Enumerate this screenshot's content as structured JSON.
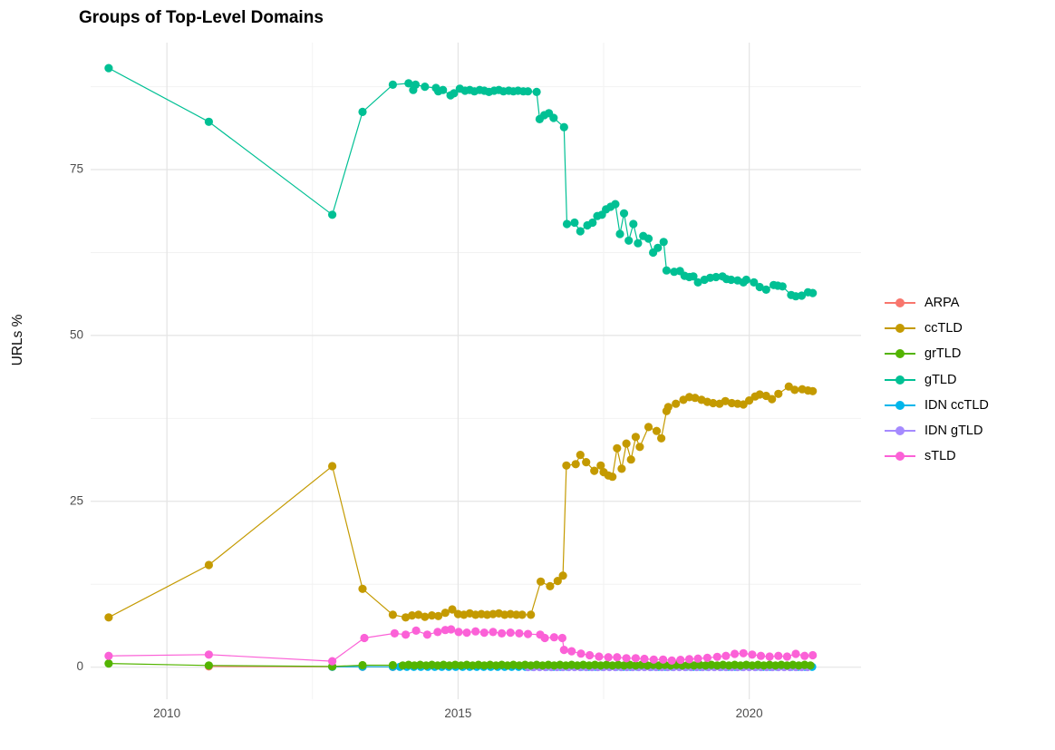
{
  "figure": {
    "background": "#FFFFFF"
  },
  "chart_data": {
    "type": "line",
    "title": "Groups of Top-Level Domains",
    "xlabel": "",
    "ylabel": "URLs %",
    "legend_position": "right",
    "grid": true,
    "xlim": [
      2008.69,
      2021.92
    ],
    "ylim": [
      -4.83,
      94.14
    ],
    "x_ticks": [
      {
        "value": 2010,
        "label": "2010"
      },
      {
        "value": 2015,
        "label": "2015"
      },
      {
        "value": 2020,
        "label": "2020"
      }
    ],
    "y_ticks": [
      {
        "value": 0,
        "label": "0"
      },
      {
        "value": 25,
        "label": "25"
      },
      {
        "value": 50,
        "label": "50"
      },
      {
        "value": 75,
        "label": "75"
      }
    ],
    "x_minor_gridlines": [
      2012.5,
      2017.5
    ],
    "y_minor_gridlines": [
      12.5,
      37.5,
      62.5,
      87.5
    ],
    "draw_order": [
      "ARPA",
      "IDN ccTLD",
      "IDN gTLD",
      "grTLD",
      "ccTLD",
      "gTLD",
      "sTLD"
    ],
    "series": [
      {
        "name": "ARPA",
        "color": "#F8766D",
        "points": [
          [
            2010.72,
            0.12
          ],
          [
            2012.84,
            0.07
          ],
          [
            2013.36,
            0.05
          ],
          [
            2013.88,
            0.04
          ]
        ]
      },
      {
        "name": "ccTLD",
        "color": "#C49A00",
        "points": [
          [
            2009.0,
            7.5
          ],
          [
            2010.72,
            15.4
          ],
          [
            2012.84,
            30.3
          ],
          [
            2013.36,
            11.8
          ],
          [
            2013.88,
            7.9
          ],
          [
            2014.1,
            7.5
          ],
          [
            2014.21,
            7.8
          ],
          [
            2014.32,
            7.9
          ],
          [
            2014.43,
            7.6
          ],
          [
            2014.55,
            7.8
          ],
          [
            2014.66,
            7.7
          ],
          [
            2014.78,
            8.2
          ],
          [
            2014.9,
            8.7
          ],
          [
            2015.0,
            8.0
          ],
          [
            2015.1,
            7.9
          ],
          [
            2015.2,
            8.1
          ],
          [
            2015.3,
            7.9
          ],
          [
            2015.4,
            8.0
          ],
          [
            2015.5,
            7.9
          ],
          [
            2015.6,
            8.0
          ],
          [
            2015.7,
            8.1
          ],
          [
            2015.8,
            7.9
          ],
          [
            2015.9,
            8.0
          ],
          [
            2016.0,
            7.9
          ],
          [
            2016.1,
            7.9
          ],
          [
            2016.25,
            7.9
          ],
          [
            2016.42,
            12.9
          ],
          [
            2016.58,
            12.2
          ],
          [
            2016.71,
            13.0
          ],
          [
            2016.8,
            13.8
          ],
          [
            2016.86,
            30.4
          ],
          [
            2017.02,
            30.6
          ],
          [
            2017.1,
            32.0
          ],
          [
            2017.2,
            30.9
          ],
          [
            2017.34,
            29.6
          ],
          [
            2017.45,
            30.4
          ],
          [
            2017.5,
            29.4
          ],
          [
            2017.58,
            28.9
          ],
          [
            2017.65,
            28.7
          ],
          [
            2017.73,
            33.0
          ],
          [
            2017.81,
            29.9
          ],
          [
            2017.89,
            33.7
          ],
          [
            2017.97,
            31.3
          ],
          [
            2018.05,
            34.7
          ],
          [
            2018.12,
            33.2
          ],
          [
            2018.27,
            36.2
          ],
          [
            2018.41,
            35.6
          ],
          [
            2018.49,
            34.5
          ],
          [
            2018.58,
            38.6
          ],
          [
            2018.61,
            39.2
          ],
          [
            2018.74,
            39.7
          ],
          [
            2018.87,
            40.3
          ],
          [
            2018.97,
            40.7
          ],
          [
            2019.07,
            40.6
          ],
          [
            2019.18,
            40.3
          ],
          [
            2019.28,
            40.0
          ],
          [
            2019.38,
            39.8
          ],
          [
            2019.49,
            39.7
          ],
          [
            2019.59,
            40.1
          ],
          [
            2019.7,
            39.8
          ],
          [
            2019.8,
            39.7
          ],
          [
            2019.9,
            39.6
          ],
          [
            2020.0,
            40.2
          ],
          [
            2020.1,
            40.8
          ],
          [
            2020.18,
            41.1
          ],
          [
            2020.29,
            40.9
          ],
          [
            2020.39,
            40.4
          ],
          [
            2020.5,
            41.2
          ],
          [
            2020.68,
            42.3
          ],
          [
            2020.78,
            41.8
          ],
          [
            2020.91,
            41.9
          ],
          [
            2021.01,
            41.7
          ],
          [
            2021.09,
            41.6
          ]
        ]
      },
      {
        "name": "grTLD",
        "color": "#53B400",
        "points": [
          [
            2009.0,
            0.55
          ],
          [
            2010.72,
            0.25
          ],
          [
            2012.84,
            0.1
          ],
          [
            2013.36,
            0.3
          ],
          [
            2013.88,
            0.3
          ]
        ],
        "extend": {
          "from": 2014.05,
          "to": 2021.09,
          "step": 0.1,
          "value": 0.3
        },
        "wiggle": 0.05
      },
      {
        "name": "gTLD",
        "color": "#00C094",
        "points": [
          [
            2009.0,
            90.3
          ],
          [
            2010.72,
            82.2
          ],
          [
            2012.84,
            68.2
          ],
          [
            2013.36,
            83.7
          ],
          [
            2013.88,
            87.8
          ],
          [
            2014.15,
            88.0
          ],
          [
            2014.23,
            87.0
          ],
          [
            2014.27,
            87.8
          ],
          [
            2014.43,
            87.5
          ],
          [
            2014.62,
            87.3
          ],
          [
            2014.66,
            86.8
          ],
          [
            2014.74,
            87.0
          ],
          [
            2014.87,
            86.2
          ],
          [
            2014.93,
            86.5
          ],
          [
            2015.03,
            87.2
          ],
          [
            2015.12,
            86.9
          ],
          [
            2015.2,
            87.0
          ],
          [
            2015.28,
            86.8
          ],
          [
            2015.37,
            87.0
          ],
          [
            2015.45,
            86.9
          ],
          [
            2015.53,
            86.7
          ],
          [
            2015.62,
            86.9
          ],
          [
            2015.7,
            87.0
          ],
          [
            2015.78,
            86.8
          ],
          [
            2015.87,
            86.9
          ],
          [
            2015.95,
            86.8
          ],
          [
            2016.03,
            86.9
          ],
          [
            2016.12,
            86.8
          ],
          [
            2016.2,
            86.8
          ],
          [
            2016.35,
            86.7
          ],
          [
            2016.4,
            82.6
          ],
          [
            2016.48,
            83.2
          ],
          [
            2016.56,
            83.5
          ],
          [
            2016.64,
            82.8
          ],
          [
            2016.82,
            81.4
          ],
          [
            2016.87,
            66.8
          ],
          [
            2017.0,
            67.0
          ],
          [
            2017.1,
            65.7
          ],
          [
            2017.22,
            66.6
          ],
          [
            2017.31,
            67.0
          ],
          [
            2017.39,
            68.0
          ],
          [
            2017.47,
            68.2
          ],
          [
            2017.54,
            69.0
          ],
          [
            2017.62,
            69.4
          ],
          [
            2017.7,
            69.8
          ],
          [
            2017.78,
            65.3
          ],
          [
            2017.85,
            68.4
          ],
          [
            2017.93,
            64.3
          ],
          [
            2018.01,
            66.8
          ],
          [
            2018.09,
            63.9
          ],
          [
            2018.18,
            65.0
          ],
          [
            2018.27,
            64.6
          ],
          [
            2018.35,
            62.5
          ],
          [
            2018.43,
            63.2
          ],
          [
            2018.53,
            64.1
          ],
          [
            2018.58,
            59.8
          ],
          [
            2018.71,
            59.6
          ],
          [
            2018.81,
            59.7
          ],
          [
            2018.89,
            59.0
          ],
          [
            2018.97,
            58.8
          ],
          [
            2019.04,
            58.9
          ],
          [
            2019.12,
            58.0
          ],
          [
            2019.23,
            58.4
          ],
          [
            2019.33,
            58.7
          ],
          [
            2019.43,
            58.8
          ],
          [
            2019.54,
            58.9
          ],
          [
            2019.61,
            58.5
          ],
          [
            2019.69,
            58.4
          ],
          [
            2019.8,
            58.3
          ],
          [
            2019.9,
            58.0
          ],
          [
            2019.95,
            58.4
          ],
          [
            2020.08,
            58.0
          ],
          [
            2020.18,
            57.3
          ],
          [
            2020.29,
            56.9
          ],
          [
            2020.42,
            57.6
          ],
          [
            2020.49,
            57.5
          ],
          [
            2020.57,
            57.4
          ],
          [
            2020.72,
            56.1
          ],
          [
            2020.8,
            55.9
          ],
          [
            2020.9,
            56.0
          ],
          [
            2021.01,
            56.5
          ],
          [
            2021.09,
            56.4
          ]
        ]
      },
      {
        "name": "IDN ccTLD",
        "color": "#00B6EB",
        "points": [
          [
            2012.84,
            0.05
          ],
          [
            2013.36,
            0.08
          ]
        ],
        "extend": {
          "from": 2013.88,
          "to": 2021.09,
          "step": 0.12,
          "value": 0.05
        }
      },
      {
        "name": "IDN gTLD",
        "color": "#A58AFF",
        "points": [],
        "extend": {
          "from": 2016.2,
          "to": 2021.09,
          "step": 0.1,
          "value": 0.02
        }
      },
      {
        "name": "sTLD",
        "color": "#FB61D7",
        "points": [
          [
            2009.0,
            1.7
          ],
          [
            2010.72,
            1.9
          ],
          [
            2012.84,
            0.9
          ],
          [
            2013.39,
            4.4
          ],
          [
            2013.91,
            5.1
          ],
          [
            2014.1,
            4.9
          ],
          [
            2014.28,
            5.5
          ],
          [
            2014.47,
            4.9
          ],
          [
            2014.65,
            5.3
          ],
          [
            2014.78,
            5.6
          ],
          [
            2014.88,
            5.7
          ],
          [
            2015.01,
            5.3
          ],
          [
            2015.15,
            5.2
          ],
          [
            2015.3,
            5.4
          ],
          [
            2015.45,
            5.2
          ],
          [
            2015.6,
            5.3
          ],
          [
            2015.75,
            5.1
          ],
          [
            2015.9,
            5.2
          ],
          [
            2016.05,
            5.1
          ],
          [
            2016.2,
            5.0
          ],
          [
            2016.41,
            4.9
          ],
          [
            2016.49,
            4.4
          ],
          [
            2016.65,
            4.5
          ],
          [
            2016.79,
            4.4
          ],
          [
            2016.82,
            2.6
          ],
          [
            2016.95,
            2.4
          ],
          [
            2017.11,
            2.05
          ],
          [
            2017.26,
            1.8
          ],
          [
            2017.42,
            1.6
          ],
          [
            2017.58,
            1.5
          ],
          [
            2017.73,
            1.5
          ],
          [
            2017.89,
            1.35
          ],
          [
            2018.05,
            1.35
          ],
          [
            2018.2,
            1.25
          ],
          [
            2018.36,
            1.15
          ],
          [
            2018.52,
            1.15
          ],
          [
            2018.67,
            1.0
          ],
          [
            2018.82,
            1.1
          ],
          [
            2018.97,
            1.2
          ],
          [
            2019.12,
            1.3
          ],
          [
            2019.28,
            1.4
          ],
          [
            2019.45,
            1.55
          ],
          [
            2019.6,
            1.7
          ],
          [
            2019.75,
            2.0
          ],
          [
            2019.9,
            2.1
          ],
          [
            2020.05,
            1.9
          ],
          [
            2020.2,
            1.7
          ],
          [
            2020.35,
            1.6
          ],
          [
            2020.5,
            1.7
          ],
          [
            2020.65,
            1.6
          ],
          [
            2020.8,
            2.0
          ],
          [
            2020.95,
            1.7
          ],
          [
            2021.09,
            1.8
          ]
        ]
      }
    ]
  }
}
